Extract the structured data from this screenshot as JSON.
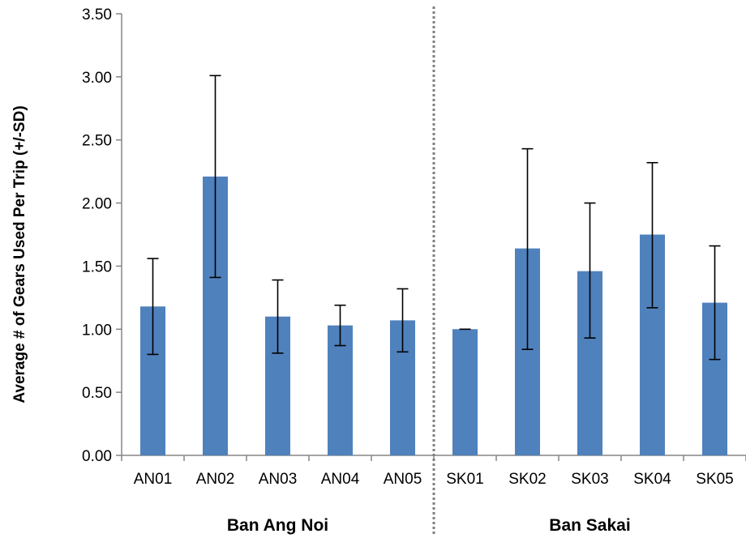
{
  "chart_data": {
    "type": "bar",
    "title": "",
    "xlabel": "",
    "ylabel": "Average # of Gears Used Per Trip (+/-SD)",
    "ylim": [
      0,
      3.5
    ],
    "yticks": [
      "0.00",
      "0.50",
      "1.00",
      "1.50",
      "2.00",
      "2.50",
      "3.00",
      "3.50"
    ],
    "grid": false,
    "legend": "none",
    "categories": [
      "AN01",
      "AN02",
      "AN03",
      "AN04",
      "AN05",
      "SK01",
      "SK02",
      "SK03",
      "SK04",
      "SK05"
    ],
    "values": [
      1.18,
      2.21,
      1.1,
      1.03,
      1.07,
      1.0,
      1.64,
      1.46,
      1.75,
      1.21
    ],
    "error_low": [
      0.8,
      1.41,
      0.81,
      0.87,
      0.82,
      1.0,
      0.84,
      0.93,
      1.17,
      0.76
    ],
    "error_high": [
      1.56,
      3.01,
      1.39,
      1.19,
      1.32,
      1.0,
      2.43,
      2.0,
      2.32,
      1.66
    ],
    "groups": [
      {
        "label": "Ban Ang Noi",
        "categories": [
          "AN01",
          "AN02",
          "AN03",
          "AN04",
          "AN05"
        ]
      },
      {
        "label": "Ban Sakai",
        "categories": [
          "SK01",
          "SK02",
          "SK03",
          "SK04",
          "SK05"
        ]
      }
    ],
    "bar_color": "#4F81BD",
    "divider": "dotted line between AN05 and SK01"
  }
}
